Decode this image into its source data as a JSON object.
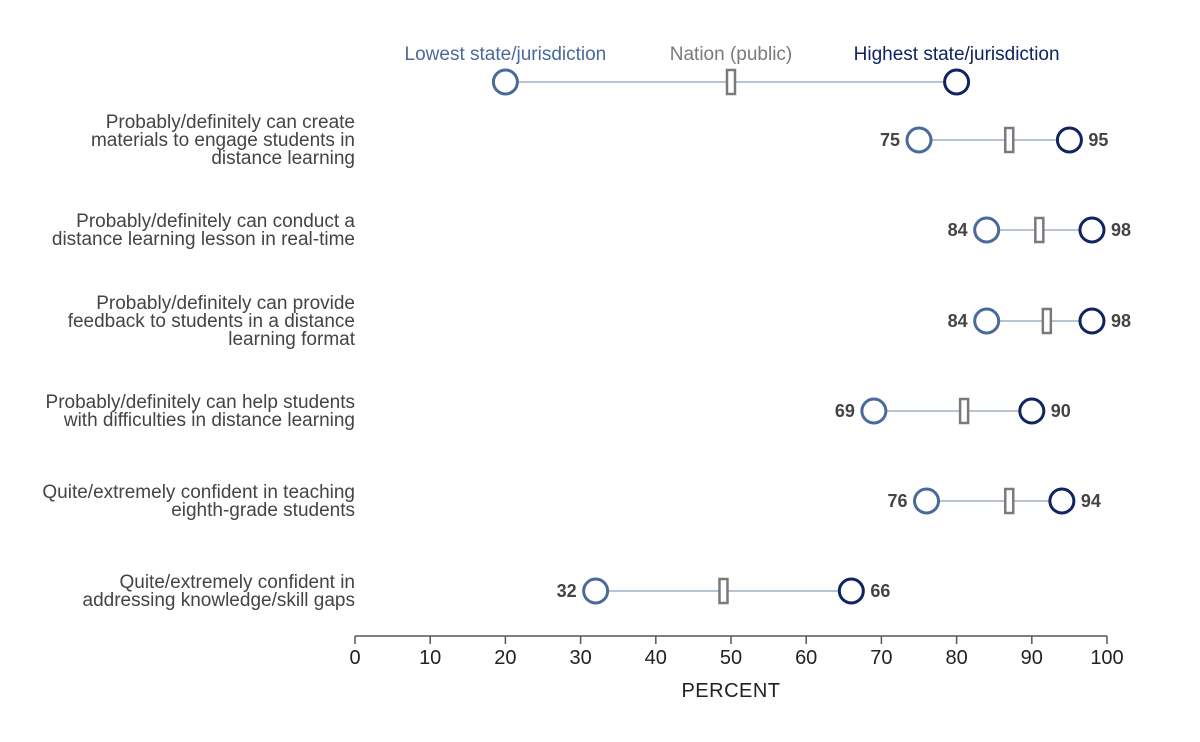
{
  "chart_data": {
    "type": "dumbbell",
    "legend": {
      "low": "Lowest state/jurisdiction",
      "nation": "Nation (public)",
      "high": "Highest state/jurisdiction"
    },
    "categories": [
      [
        "Probably/definitely can create",
        "materials to engage students in",
        "distance learning"
      ],
      [
        "Probably/definitely can conduct a",
        "distance learning lesson in real-time"
      ],
      [
        "Probably/definitely can provide",
        "feedback to students in a distance",
        "learning format"
      ],
      [
        "Probably/definitely can help students",
        "with difficulties in distance learning"
      ],
      [
        "Quite/extremely confident in teaching",
        "eighth-grade students"
      ],
      [
        "Quite/extremely confident in",
        "addressing knowledge/skill gaps"
      ]
    ],
    "series": [
      {
        "name": "Lowest state/jurisdiction",
        "values": [
          75,
          84,
          84,
          69,
          76,
          32
        ]
      },
      {
        "name": "Nation (public)",
        "values": [
          87,
          91,
          92,
          81,
          87,
          49
        ]
      },
      {
        "name": "Highest state/jurisdiction",
        "values": [
          95,
          98,
          98,
          90,
          94,
          66
        ]
      }
    ],
    "value_labels": {
      "low": [
        "75",
        "84",
        "84",
        "69",
        "76",
        "32"
      ],
      "high": [
        "95",
        "98",
        "98",
        "90",
        "94",
        "66"
      ]
    },
    "xlabel": "PERCENT",
    "xlim": [
      0,
      100
    ],
    "xticks": [
      "0",
      "10",
      "20",
      "30",
      "40",
      "50",
      "60",
      "70",
      "80",
      "90",
      "100"
    ],
    "legend_positions": {
      "low": 20,
      "nation": 50,
      "high": 80
    },
    "colors": {
      "low": "#4a6a9b",
      "nation": "#7a7a7a",
      "high": "#0f2460",
      "connector": "#9fb0c8",
      "axis": "#555555",
      "text": "#444444"
    }
  }
}
